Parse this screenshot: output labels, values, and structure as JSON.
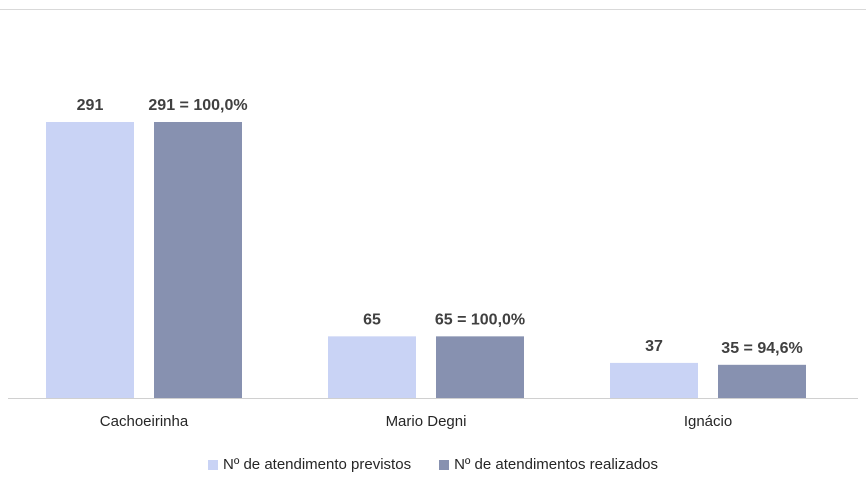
{
  "chart_data": {
    "type": "bar",
    "categories": [
      "Cachoeirinha",
      "Mario Degni",
      "Ignácio"
    ],
    "series": [
      {
        "name": "Nº de atendimento previstos",
        "values": [
          291,
          65,
          37
        ],
        "labels": [
          "291",
          "65",
          "37"
        ],
        "color": "#c9d3f5"
      },
      {
        "name": "Nº de atendimentos realizados",
        "values": [
          291,
          65,
          35
        ],
        "labels": [
          "291 = 100,0%",
          "65 = 100,0%",
          "35 = 94,6%"
        ],
        "color": "#8791b0"
      }
    ],
    "title": "",
    "xlabel": "",
    "ylabel": "",
    "ylim": [
      0,
      291
    ],
    "grid": false,
    "legend_position": "bottom"
  }
}
